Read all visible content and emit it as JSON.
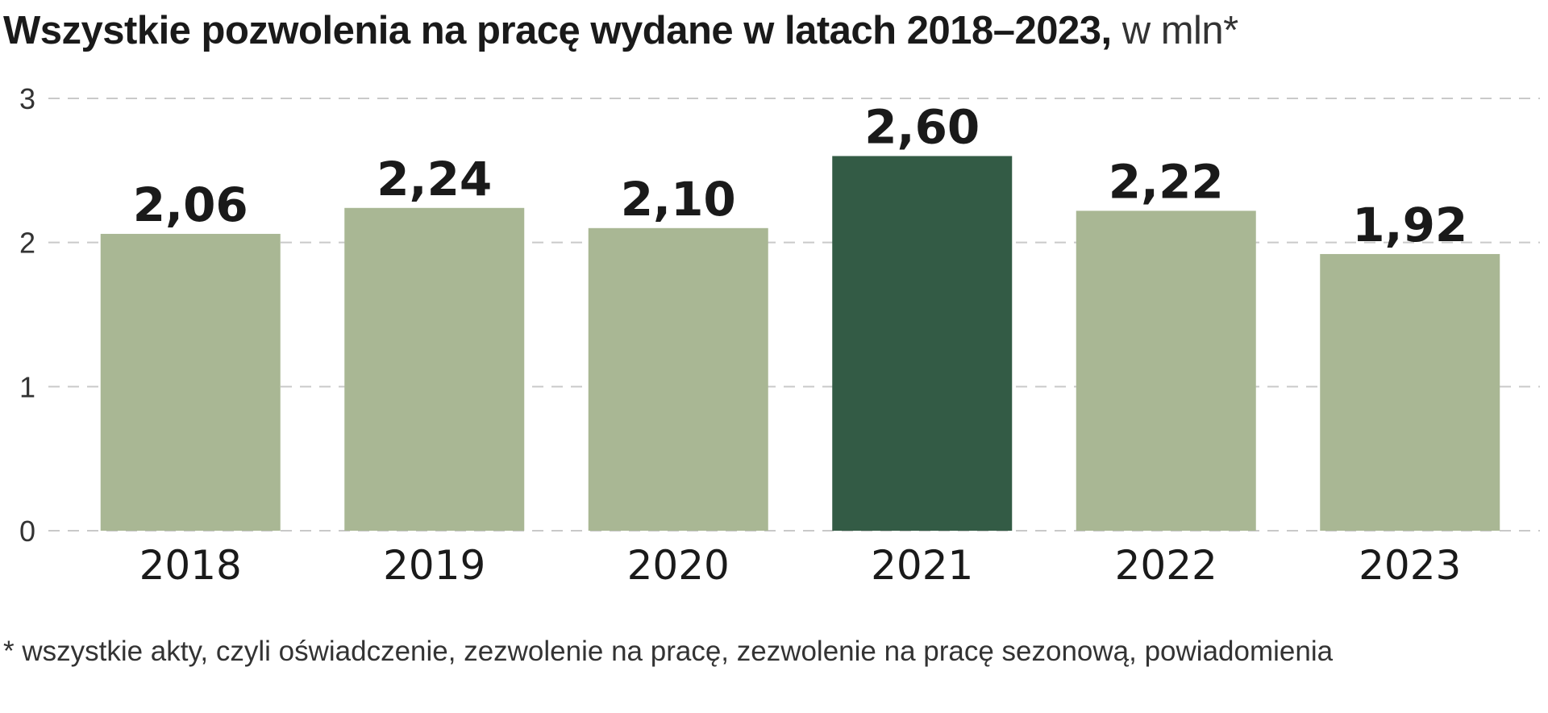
{
  "chart_data": {
    "type": "bar",
    "title": "Wszystkie pozwolenia na pracę wydane w latach 2018–2023,",
    "title_unit": "w mln*",
    "categories": [
      "2018",
      "2019",
      "2020",
      "2021",
      "2022",
      "2023"
    ],
    "values": [
      2.06,
      2.24,
      2.1,
      2.6,
      2.22,
      1.92
    ],
    "value_labels": [
      "2,06",
      "2,24",
      "2,10",
      "2,60",
      "2,22",
      "1,92"
    ],
    "yticks": [
      0,
      1,
      2,
      3
    ],
    "ylim": [
      0,
      3
    ],
    "xlabel": "",
    "ylabel": "",
    "grid": true,
    "highlight_index": 3,
    "colors": {
      "bar": "#a9b794",
      "highlight": "#335b45",
      "grid": "#c9c9c9"
    },
    "footnote": "* wszystkie akty, czyli oświadczenie, zezwolenie na pracę, zezwolenie na pracę sezonową, powiadomienia"
  }
}
